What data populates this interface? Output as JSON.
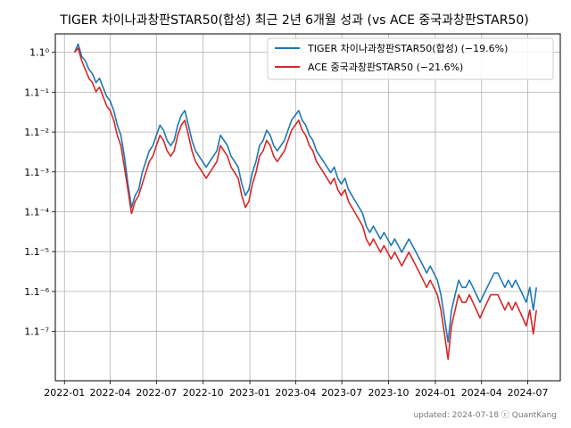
{
  "chart_data": {
    "type": "line",
    "title": "TIGER 차이나과창판STAR50(합성) 최근 2년 6개월 성과 (vs ACE 중국과창판STAR50)",
    "xlabel": "",
    "ylabel": "",
    "x_tick_labels": [
      "2022-01",
      "2022-04",
      "2022-07",
      "2022-10",
      "2023-01",
      "2023-04",
      "2023-07",
      "2023-10",
      "2024-01",
      "2024-04",
      "2024-07"
    ],
    "x_ticks": [
      "2022-01-01",
      "2022-04-01",
      "2022-07-01",
      "2022-10-01",
      "2023-01-01",
      "2023-04-01",
      "2023-07-01",
      "2023-10-01",
      "2024-01-01",
      "2024-04-01",
      "2024-07-01"
    ],
    "xlim": [
      "2021-12-14",
      "2024-09-03"
    ],
    "y_tick_labels": [
      "1.1⁰",
      "1.1⁻¹",
      "1.1⁻²",
      "1.1⁻³",
      "1.1⁻⁴",
      "1.1⁻⁵",
      "1.1⁻⁶",
      "1.1⁻⁷"
    ],
    "y_scale": "log",
    "y_ticks": [
      1.0,
      0.9091,
      0.8264,
      0.7513,
      0.683,
      0.6209,
      0.5645,
      0.5132
    ],
    "ylim": [
      0.456,
      1.045
    ],
    "grid": true,
    "legend": "top-right",
    "series": [
      {
        "name": "TIGER 차이나과창판STAR50(합성) (−19.6%)",
        "color": "#1f77b4",
        "x": [
          "2022-01-21",
          "2022-01-28",
          "2022-02-04",
          "2022-02-11",
          "2022-02-18",
          "2022-02-25",
          "2022-03-04",
          "2022-03-11",
          "2022-03-18",
          "2022-03-25",
          "2022-04-01",
          "2022-04-08",
          "2022-04-15",
          "2022-04-22",
          "2022-04-29",
          "2022-05-06",
          "2022-05-13",
          "2022-05-20",
          "2022-05-27",
          "2022-06-03",
          "2022-06-10",
          "2022-06-17",
          "2022-06-24",
          "2022-07-01",
          "2022-07-08",
          "2022-07-15",
          "2022-07-22",
          "2022-07-29",
          "2022-08-05",
          "2022-08-12",
          "2022-08-19",
          "2022-08-26",
          "2022-09-02",
          "2022-09-09",
          "2022-09-16",
          "2022-09-23",
          "2022-09-30",
          "2022-10-07",
          "2022-10-14",
          "2022-10-21",
          "2022-10-28",
          "2022-11-04",
          "2022-11-11",
          "2022-11-18",
          "2022-11-25",
          "2022-12-02",
          "2022-12-09",
          "2022-12-16",
          "2022-12-23",
          "2022-12-30",
          "2023-01-06",
          "2023-01-13",
          "2023-01-20",
          "2023-01-27",
          "2023-02-03",
          "2023-02-10",
          "2023-02-17",
          "2023-02-24",
          "2023-03-03",
          "2023-03-10",
          "2023-03-17",
          "2023-03-24",
          "2023-03-31",
          "2023-04-07",
          "2023-04-14",
          "2023-04-21",
          "2023-04-28",
          "2023-05-05",
          "2023-05-12",
          "2023-05-19",
          "2023-05-26",
          "2023-06-02",
          "2023-06-09",
          "2023-06-16",
          "2023-06-23",
          "2023-06-30",
          "2023-07-07",
          "2023-07-14",
          "2023-07-21",
          "2023-07-28",
          "2023-08-04",
          "2023-08-11",
          "2023-08-18",
          "2023-08-25",
          "2023-09-01",
          "2023-09-08",
          "2023-09-15",
          "2023-09-22",
          "2023-09-29",
          "2023-10-06",
          "2023-10-13",
          "2023-10-20",
          "2023-10-27",
          "2023-11-03",
          "2023-11-10",
          "2023-11-17",
          "2023-11-24",
          "2023-12-01",
          "2023-12-08",
          "2023-12-15",
          "2023-12-22",
          "2023-12-29",
          "2024-01-05",
          "2024-01-12",
          "2024-01-19",
          "2024-01-26",
          "2024-02-02",
          "2024-02-09",
          "2024-02-16",
          "2024-02-23",
          "2024-03-01",
          "2024-03-08",
          "2024-03-15",
          "2024-03-22",
          "2024-03-29",
          "2024-04-05",
          "2024-04-12",
          "2024-04-19",
          "2024-04-26",
          "2024-05-03",
          "2024-05-10",
          "2024-05-17",
          "2024-05-24",
          "2024-05-31",
          "2024-06-07",
          "2024-06-14",
          "2024-06-21",
          "2024-06-28",
          "2024-07-05",
          "2024-07-12",
          "2024-07-18"
        ],
        "values": [
          1.0,
          1.02,
          0.99,
          0.98,
          0.96,
          0.95,
          0.93,
          0.94,
          0.92,
          0.9,
          0.89,
          0.87,
          0.84,
          0.82,
          0.78,
          0.73,
          0.69,
          0.71,
          0.72,
          0.75,
          0.77,
          0.79,
          0.8,
          0.82,
          0.84,
          0.83,
          0.81,
          0.8,
          0.81,
          0.84,
          0.86,
          0.87,
          0.84,
          0.81,
          0.79,
          0.78,
          0.77,
          0.76,
          0.77,
          0.78,
          0.79,
          0.82,
          0.81,
          0.8,
          0.78,
          0.77,
          0.76,
          0.73,
          0.71,
          0.72,
          0.75,
          0.77,
          0.8,
          0.81,
          0.83,
          0.82,
          0.8,
          0.79,
          0.8,
          0.81,
          0.83,
          0.85,
          0.86,
          0.87,
          0.85,
          0.84,
          0.82,
          0.81,
          0.79,
          0.78,
          0.77,
          0.76,
          0.75,
          0.76,
          0.74,
          0.73,
          0.74,
          0.72,
          0.71,
          0.7,
          0.69,
          0.68,
          0.66,
          0.65,
          0.66,
          0.65,
          0.64,
          0.65,
          0.64,
          0.63,
          0.64,
          0.63,
          0.62,
          0.63,
          0.64,
          0.63,
          0.62,
          0.61,
          0.6,
          0.59,
          0.6,
          0.59,
          0.58,
          0.56,
          0.53,
          0.5,
          0.54,
          0.56,
          0.58,
          0.57,
          0.57,
          0.58,
          0.57,
          0.56,
          0.55,
          0.56,
          0.57,
          0.58,
          0.59,
          0.59,
          0.58,
          0.57,
          0.58,
          0.57,
          0.58,
          0.57,
          0.56,
          0.55,
          0.57,
          0.54,
          0.57
        ]
      },
      {
        "name": "ACE 중국과창판STAR50 (−21.6%)",
        "color": "#d62728",
        "x": [
          "2022-01-21",
          "2022-01-28",
          "2022-02-04",
          "2022-02-11",
          "2022-02-18",
          "2022-02-25",
          "2022-03-04",
          "2022-03-11",
          "2022-03-18",
          "2022-03-25",
          "2022-04-01",
          "2022-04-08",
          "2022-04-15",
          "2022-04-22",
          "2022-04-29",
          "2022-05-06",
          "2022-05-13",
          "2022-05-20",
          "2022-05-27",
          "2022-06-03",
          "2022-06-10",
          "2022-06-17",
          "2022-06-24",
          "2022-07-01",
          "2022-07-08",
          "2022-07-15",
          "2022-07-22",
          "2022-07-29",
          "2022-08-05",
          "2022-08-12",
          "2022-08-19",
          "2022-08-26",
          "2022-09-02",
          "2022-09-09",
          "2022-09-16",
          "2022-09-23",
          "2022-09-30",
          "2022-10-07",
          "2022-10-14",
          "2022-10-21",
          "2022-10-28",
          "2022-11-04",
          "2022-11-11",
          "2022-11-18",
          "2022-11-25",
          "2022-12-02",
          "2022-12-09",
          "2022-12-16",
          "2022-12-23",
          "2022-12-30",
          "2023-01-06",
          "2023-01-13",
          "2023-01-20",
          "2023-01-27",
          "2023-02-03",
          "2023-02-10",
          "2023-02-17",
          "2023-02-24",
          "2023-03-03",
          "2023-03-10",
          "2023-03-17",
          "2023-03-24",
          "2023-03-31",
          "2023-04-07",
          "2023-04-14",
          "2023-04-21",
          "2023-04-28",
          "2023-05-05",
          "2023-05-12",
          "2023-05-19",
          "2023-05-26",
          "2023-06-02",
          "2023-06-09",
          "2023-06-16",
          "2023-06-23",
          "2023-06-30",
          "2023-07-07",
          "2023-07-14",
          "2023-07-21",
          "2023-07-28",
          "2023-08-04",
          "2023-08-11",
          "2023-08-18",
          "2023-08-25",
          "2023-09-01",
          "2023-09-08",
          "2023-09-15",
          "2023-09-22",
          "2023-09-29",
          "2023-10-06",
          "2023-10-13",
          "2023-10-20",
          "2023-10-27",
          "2023-11-03",
          "2023-11-10",
          "2023-11-17",
          "2023-11-24",
          "2023-12-01",
          "2023-12-08",
          "2023-12-15",
          "2023-12-22",
          "2023-12-29",
          "2024-01-05",
          "2024-01-12",
          "2024-01-19",
          "2024-01-26",
          "2024-02-02",
          "2024-02-09",
          "2024-02-16",
          "2024-02-23",
          "2024-03-01",
          "2024-03-08",
          "2024-03-15",
          "2024-03-22",
          "2024-03-29",
          "2024-04-05",
          "2024-04-12",
          "2024-04-19",
          "2024-04-26",
          "2024-05-03",
          "2024-05-10",
          "2024-05-17",
          "2024-05-24",
          "2024-05-31",
          "2024-06-07",
          "2024-06-14",
          "2024-06-21",
          "2024-06-28",
          "2024-07-05",
          "2024-07-12",
          "2024-07-18"
        ],
        "values": [
          1.0,
          1.01,
          0.98,
          0.96,
          0.94,
          0.93,
          0.91,
          0.92,
          0.9,
          0.88,
          0.87,
          0.85,
          0.82,
          0.8,
          0.76,
          0.72,
          0.68,
          0.7,
          0.71,
          0.73,
          0.75,
          0.77,
          0.78,
          0.8,
          0.82,
          0.81,
          0.79,
          0.78,
          0.79,
          0.82,
          0.84,
          0.85,
          0.82,
          0.79,
          0.77,
          0.76,
          0.75,
          0.74,
          0.75,
          0.76,
          0.77,
          0.8,
          0.79,
          0.78,
          0.76,
          0.75,
          0.74,
          0.71,
          0.69,
          0.7,
          0.73,
          0.75,
          0.78,
          0.79,
          0.81,
          0.8,
          0.78,
          0.77,
          0.78,
          0.79,
          0.81,
          0.83,
          0.84,
          0.85,
          0.83,
          0.82,
          0.8,
          0.79,
          0.77,
          0.76,
          0.75,
          0.74,
          0.73,
          0.74,
          0.72,
          0.71,
          0.72,
          0.7,
          0.69,
          0.68,
          0.67,
          0.66,
          0.64,
          0.63,
          0.64,
          0.63,
          0.62,
          0.63,
          0.62,
          0.61,
          0.62,
          0.61,
          0.6,
          0.61,
          0.62,
          0.61,
          0.6,
          0.59,
          0.58,
          0.57,
          0.58,
          0.57,
          0.56,
          0.54,
          0.51,
          0.48,
          0.52,
          0.54,
          0.56,
          0.55,
          0.55,
          0.56,
          0.55,
          0.54,
          0.53,
          0.54,
          0.55,
          0.56,
          0.56,
          0.56,
          0.55,
          0.54,
          0.55,
          0.54,
          0.55,
          0.54,
          0.53,
          0.52,
          0.54,
          0.51,
          0.54
        ]
      }
    ]
  },
  "footer": {
    "text": "updated: 2024-07-18 ⓒ QuantKang"
  }
}
